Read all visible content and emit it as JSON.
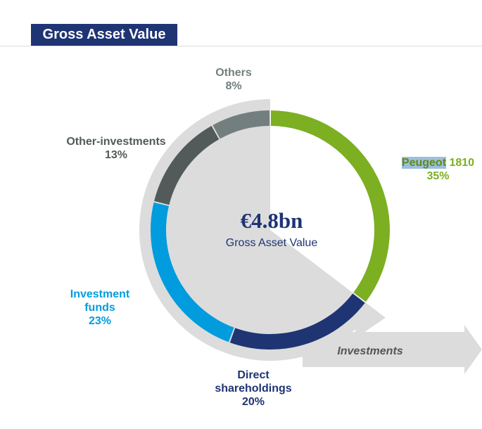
{
  "title": "Gross Asset Value",
  "chart_data": {
    "type": "pie",
    "subtype": "donut",
    "categories": [
      "Peugeot 1810",
      "Direct shareholdings",
      "Investment funds",
      "Other-investments",
      "Others"
    ],
    "values": [
      35,
      20,
      23,
      13,
      8
    ],
    "unit": "%",
    "colors": [
      "#7CAF22",
      "#1F3473",
      "#009CDE",
      "#525A5A",
      "#737F7E"
    ],
    "center_value": "€4.8bn",
    "center_label": "Gross Asset Value",
    "arrow_label": "Investments",
    "labels": [
      {
        "name": "Peugeot",
        "name2": " 1810",
        "pct": "35%"
      },
      {
        "name": "Direct",
        "name2": "shareholdings",
        "pct": "20%"
      },
      {
        "name": "Investment",
        "name2": "funds",
        "pct": "23%"
      },
      {
        "name": "Other-investments",
        "pct": "13%"
      },
      {
        "name": "Others",
        "pct": "8%"
      }
    ]
  }
}
